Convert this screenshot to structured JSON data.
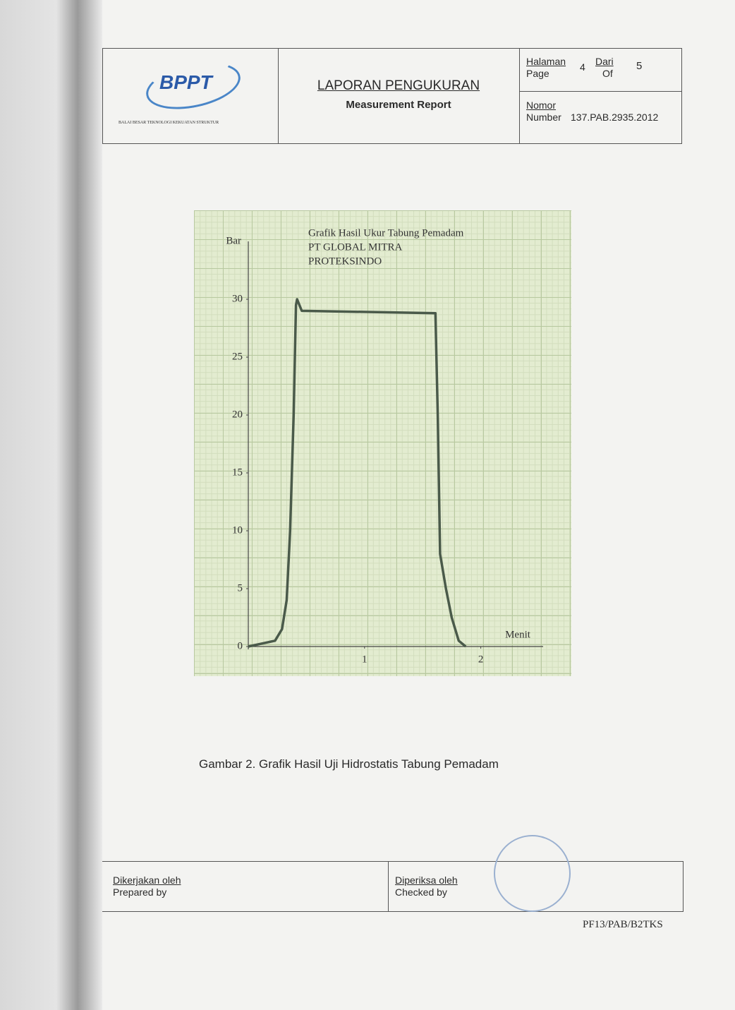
{
  "header": {
    "logo": "BPPT",
    "institution": "BALAI BESAR TEKNOLOGI KEKUATAN STRUKTUR",
    "title": "LAPORAN PENGUKURAN",
    "subtitle": "Measurement Report",
    "page_label": "Halaman",
    "page_label_en": "Page",
    "page": 4,
    "of_label": "Dari",
    "of_label_en": "Of",
    "total": 5,
    "number_label": "Nomor",
    "number_label_en": "Number",
    "number": "137.PAB.2935.2012"
  },
  "chart_data": {
    "type": "line",
    "title_lines": [
      "Grafik  Hasil Ukur Tabung Pemadam",
      "PT  GLOBAL MITRA",
      "PROTEKSINDO"
    ],
    "y_label": "Bar",
    "x_label": "Menit",
    "color": "#4a5a4a",
    "x": [
      0,
      0.23,
      0.29,
      0.33,
      0.36,
      0.39,
      0.41,
      0.42,
      0.46,
      1.61,
      1.63,
      1.65,
      1.7,
      1.75,
      1.81,
      1.87
    ],
    "values": [
      0,
      0.5,
      1.5,
      4,
      10,
      20,
      29.5,
      30,
      29,
      28.8,
      20,
      8,
      5,
      2.5,
      0.5,
      0
    ],
    "xlim": [
      0,
      2.5
    ],
    "xticks": [
      1,
      2
    ],
    "ylim": [
      0,
      35
    ],
    "yticks": [
      0,
      5,
      10,
      15,
      20,
      25,
      30
    ],
    "grid": true
  },
  "caption": "Gambar 2. Grafik Hasil Uji  Hidrostatis Tabung Pemadam",
  "footer": {
    "prepared_label": "Dikerjakan oleh",
    "prepared_label_en": "Prepared by",
    "checked_label": "Diperiksa oleh",
    "checked_label_en": "Checked by",
    "form_code": "PF13/PAB/B2TKS"
  }
}
